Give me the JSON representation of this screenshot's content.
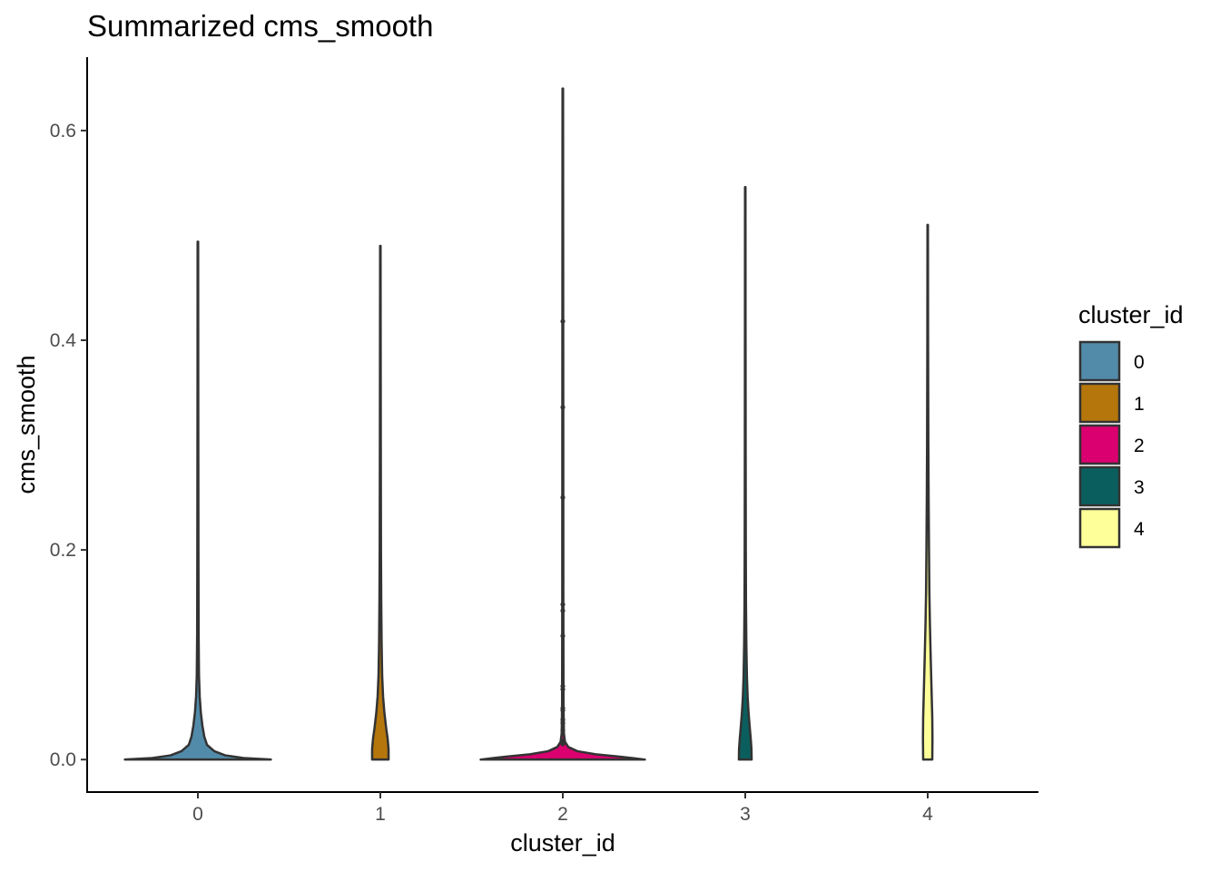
{
  "chart_data": {
    "type": "violin",
    "title": "Summarized cms_smooth",
    "xlabel": "cluster_id",
    "ylabel": "cms_smooth",
    "categories": [
      "0",
      "1",
      "2",
      "3",
      "4"
    ],
    "ylim": [
      -0.031,
      0.67
    ],
    "yticks": [
      0.0,
      0.2,
      0.4,
      0.6
    ],
    "ytick_labels": [
      "0.0",
      "0.2",
      "0.4",
      "0.6"
    ],
    "grid": false,
    "legend": {
      "title": "cluster_id",
      "position": "right",
      "entries": [
        "0",
        "1",
        "2",
        "3",
        "4"
      ]
    },
    "series": [
      {
        "category": "0",
        "color": "#528BAA",
        "max": 0.494,
        "profile": [
          [
            0,
            0.4
          ],
          [
            0.0015,
            0.25
          ],
          [
            0.004,
            0.15
          ],
          [
            0.008,
            0.09
          ],
          [
            0.014,
            0.05
          ],
          [
            0.022,
            0.035
          ],
          [
            0.032,
            0.025
          ],
          [
            0.045,
            0.016
          ],
          [
            0.06,
            0.01
          ],
          [
            0.08,
            0.006
          ],
          [
            0.12,
            0.004
          ],
          [
            0.2,
            0.003
          ],
          [
            0.35,
            0.002
          ],
          [
            0.494,
            0.0015
          ]
        ]
      },
      {
        "category": "1",
        "color": "#B5760C",
        "max": 0.49,
        "profile": [
          [
            0,
            0.045
          ],
          [
            0.01,
            0.045
          ],
          [
            0.02,
            0.04
          ],
          [
            0.03,
            0.032
          ],
          [
            0.045,
            0.022
          ],
          [
            0.06,
            0.015
          ],
          [
            0.08,
            0.01
          ],
          [
            0.11,
            0.007
          ],
          [
            0.15,
            0.005
          ],
          [
            0.2,
            0.0035
          ],
          [
            0.3,
            0.0025
          ],
          [
            0.4,
            0.0018
          ],
          [
            0.49,
            0.0012
          ]
        ]
      },
      {
        "category": "2",
        "color": "#DA006F",
        "max": 0.64,
        "profile": [
          [
            0,
            0.45
          ],
          [
            0.0015,
            0.38
          ],
          [
            0.003,
            0.3
          ],
          [
            0.005,
            0.18
          ],
          [
            0.008,
            0.08
          ],
          [
            0.012,
            0.03
          ],
          [
            0.017,
            0.012
          ],
          [
            0.025,
            0.006
          ],
          [
            0.05,
            0.004
          ],
          [
            0.15,
            0.003
          ],
          [
            0.35,
            0.0025
          ],
          [
            0.64,
            0.0015
          ]
        ],
        "outliers": [
          0.418,
          0.336,
          0.25,
          0.148,
          0.142,
          0.118,
          0.07,
          0.067,
          0.049,
          0.047,
          0.038,
          0.035,
          0.028,
          0.024,
          0.018,
          0.015
        ]
      },
      {
        "category": "3",
        "color": "#0B5E5E",
        "max": 0.546,
        "profile": [
          [
            0,
            0.035
          ],
          [
            0.01,
            0.034
          ],
          [
            0.02,
            0.03
          ],
          [
            0.03,
            0.025
          ],
          [
            0.045,
            0.018
          ],
          [
            0.06,
            0.013
          ],
          [
            0.08,
            0.009
          ],
          [
            0.11,
            0.006
          ],
          [
            0.15,
            0.004
          ],
          [
            0.2,
            0.003
          ],
          [
            0.3,
            0.0022
          ],
          [
            0.42,
            0.0016
          ],
          [
            0.546,
            0.0012
          ]
        ]
      },
      {
        "category": "4",
        "color": "#FFFF99",
        "max": 0.51,
        "profile": [
          [
            0,
            0.025
          ],
          [
            0.02,
            0.026
          ],
          [
            0.04,
            0.025
          ],
          [
            0.06,
            0.022
          ],
          [
            0.08,
            0.019
          ],
          [
            0.1,
            0.016
          ],
          [
            0.13,
            0.012
          ],
          [
            0.16,
            0.009
          ],
          [
            0.2,
            0.007
          ],
          [
            0.25,
            0.005
          ],
          [
            0.3,
            0.0035
          ],
          [
            0.4,
            0.002
          ],
          [
            0.51,
            0.0012
          ]
        ]
      }
    ]
  }
}
